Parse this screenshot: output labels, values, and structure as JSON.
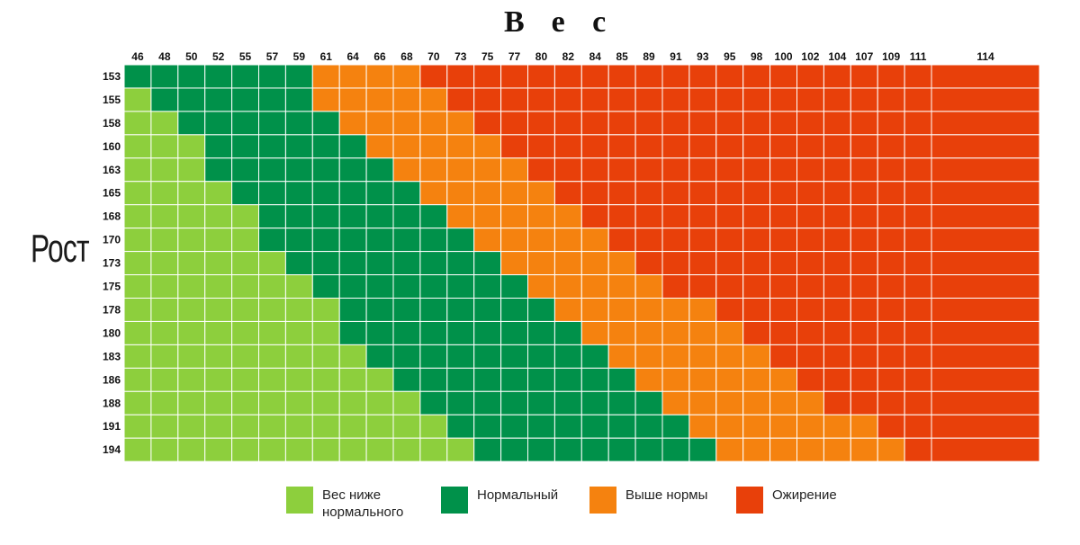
{
  "chart_data": {
    "type": "heatmap",
    "xlabel": "Вес",
    "ylabel": "Рост",
    "x_categories": [
      "46",
      "48",
      "50",
      "52",
      "55",
      "57",
      "59",
      "61",
      "64",
      "66",
      "68",
      "70",
      "73",
      "75",
      "77",
      "80",
      "82",
      "84",
      "85",
      "89",
      "91",
      "93",
      "95",
      "98",
      "100",
      "102",
      "104",
      "107",
      "109",
      "111",
      "114"
    ],
    "y_categories": [
      "153",
      "155",
      "158",
      "160",
      "163",
      "165",
      "168",
      "170",
      "173",
      "175",
      "178",
      "180",
      "183",
      "186",
      "188",
      "191",
      "194"
    ],
    "legend": [
      {
        "key": "under",
        "label": "Вес ниже\nнормального",
        "color": "#8dcf3d"
      },
      {
        "key": "normal",
        "label": "Нормальный",
        "color": "#00914a"
      },
      {
        "key": "over",
        "label": "Выше нормы",
        "color": "#f5820f"
      },
      {
        "key": "obese",
        "label": "Ожирение",
        "color": "#e8400a"
      }
    ],
    "rows": [
      {
        "height": "153",
        "normal_from_index": 0,
        "over_from_index": 7,
        "obese_from_index": 11
      },
      {
        "height": "155",
        "normal_from_index": 1,
        "over_from_index": 7,
        "obese_from_index": 12
      },
      {
        "height": "158",
        "normal_from_index": 2,
        "over_from_index": 8,
        "obese_from_index": 13
      },
      {
        "height": "160",
        "normal_from_index": 3,
        "over_from_index": 9,
        "obese_from_index": 14
      },
      {
        "height": "163",
        "normal_from_index": 3,
        "over_from_index": 10,
        "obese_from_index": 15
      },
      {
        "height": "165",
        "normal_from_index": 4,
        "over_from_index": 11,
        "obese_from_index": 16
      },
      {
        "height": "168",
        "normal_from_index": 5,
        "over_from_index": 12,
        "obese_from_index": 17
      },
      {
        "height": "170",
        "normal_from_index": 5,
        "over_from_index": 13,
        "obese_from_index": 18
      },
      {
        "height": "173",
        "normal_from_index": 6,
        "over_from_index": 14,
        "obese_from_index": 19
      },
      {
        "height": "175",
        "normal_from_index": 7,
        "over_from_index": 15,
        "obese_from_index": 20
      },
      {
        "height": "178",
        "normal_from_index": 8,
        "over_from_index": 16,
        "obese_from_index": 22
      },
      {
        "height": "180",
        "normal_from_index": 8,
        "over_from_index": 17,
        "obese_from_index": 23
      },
      {
        "height": "183",
        "normal_from_index": 9,
        "over_from_index": 18,
        "obese_from_index": 24
      },
      {
        "height": "186",
        "normal_from_index": 10,
        "over_from_index": 19,
        "obese_from_index": 25
      },
      {
        "height": "188",
        "normal_from_index": 11,
        "over_from_index": 20,
        "obese_from_index": 26
      },
      {
        "height": "191",
        "normal_from_index": 12,
        "over_from_index": 21,
        "obese_from_index": 28
      },
      {
        "height": "194",
        "normal_from_index": 13,
        "over_from_index": 22,
        "obese_from_index": 29
      }
    ]
  }
}
